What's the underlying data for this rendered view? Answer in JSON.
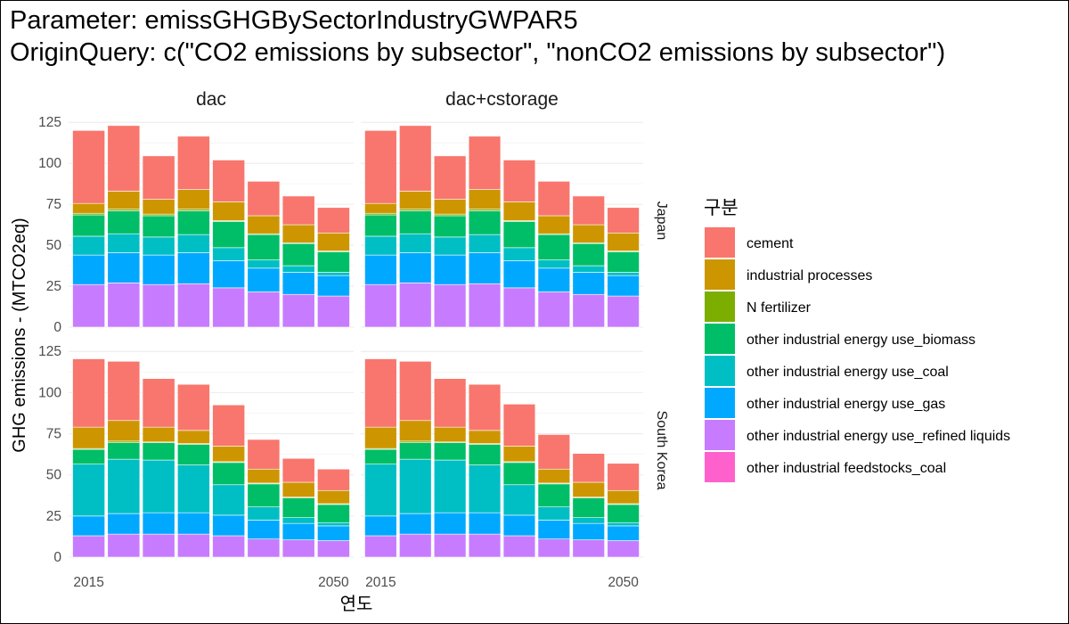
{
  "title": {
    "line1": "Parameter: emissGHGBySectorIndustryGWPAR5",
    "line2": "OriginQuery: c(\"CO2 emissions by subsector\", \"nonCO2 emissions by subsector\")"
  },
  "chart_data": {
    "type": "bar",
    "stacked": true,
    "xlabel": "연도",
    "ylabel": "GHG emissions - (MTCO2eq)",
    "x_ticks": [
      "2015",
      "2050"
    ],
    "x": [
      2015,
      2020,
      2025,
      2030,
      2035,
      2040,
      2045,
      2050
    ],
    "ylim": [
      0,
      130
    ],
    "y_ticks": [
      0,
      25,
      50,
      75,
      100,
      125
    ],
    "grid": true,
    "facet_columns": [
      "dac",
      "dac+cstorage"
    ],
    "facet_rows": [
      "Japan",
      "South Korea"
    ],
    "legend": {
      "title": "구분",
      "position": "right",
      "entries": [
        {
          "name": "cement",
          "color": "#F8766D"
        },
        {
          "name": "industrial processes",
          "color": "#CD9600"
        },
        {
          "name": "N fertilizer",
          "color": "#7CAE00"
        },
        {
          "name": "other industrial energy use_biomass",
          "color": "#00BE67"
        },
        {
          "name": "other industrial energy use_coal",
          "color": "#00BFC4"
        },
        {
          "name": "other industrial energy use_gas",
          "color": "#00A9FF"
        },
        {
          "name": "other industrial energy use_refined liquids",
          "color": "#C77CFF"
        },
        {
          "name": "other industrial feedstocks_coal",
          "color": "#FF61CC"
        }
      ]
    },
    "panels": [
      {
        "column": "dac",
        "row": "Japan",
        "series": [
          {
            "name": "other industrial energy use_refined liquids",
            "values": [
              26,
              27,
              26,
              26.5,
              24,
              21.5,
              20,
              19
            ]
          },
          {
            "name": "other industrial energy use_gas",
            "values": [
              18,
              18.5,
              18,
              19,
              16.5,
              14.5,
              13.5,
              12.5
            ]
          },
          {
            "name": "other industrial energy use_coal",
            "values": [
              11.5,
              11.5,
              11,
              11,
              8,
              5,
              4,
              2
            ]
          },
          {
            "name": "other industrial energy use_biomass",
            "values": [
              13,
              14,
              13,
              14.5,
              16,
              15.5,
              13.5,
              12.5
            ]
          },
          {
            "name": "N fertilizer",
            "values": [
              1,
              1,
              1,
              1,
              0.5,
              0.5,
              0.5,
              0.5
            ]
          },
          {
            "name": "industrial processes",
            "values": [
              6,
              11,
              9,
              12,
              11.5,
              11,
              11,
              11
            ]
          },
          {
            "name": "cement",
            "values": [
              44.5,
              40,
              26.5,
              32.5,
              25.5,
              21,
              17.5,
              15.5
            ]
          }
        ]
      },
      {
        "column": "dac+cstorage",
        "row": "Japan",
        "series": [
          {
            "name": "other industrial energy use_refined liquids",
            "values": [
              26,
              27,
              26,
              26.5,
              24,
              21.5,
              20,
              19
            ]
          },
          {
            "name": "other industrial energy use_gas",
            "values": [
              18,
              18.5,
              18,
              19,
              16.5,
              14.5,
              13.5,
              12.5
            ]
          },
          {
            "name": "other industrial energy use_coal",
            "values": [
              11.5,
              11.5,
              11,
              11,
              8,
              5,
              4,
              2
            ]
          },
          {
            "name": "other industrial energy use_biomass",
            "values": [
              13,
              14,
              13,
              14.5,
              16,
              15.5,
              13.5,
              12.5
            ]
          },
          {
            "name": "N fertilizer",
            "values": [
              1,
              1,
              1,
              1,
              0.5,
              0.5,
              0.5,
              0.5
            ]
          },
          {
            "name": "industrial processes",
            "values": [
              6,
              11,
              9,
              12,
              11.5,
              11,
              11,
              11
            ]
          },
          {
            "name": "cement",
            "values": [
              44.5,
              40,
              26.5,
              32.5,
              25.5,
              21,
              17.5,
              15.5
            ]
          }
        ]
      },
      {
        "column": "dac",
        "row": "South Korea",
        "series": [
          {
            "name": "other industrial energy use_refined liquids",
            "values": [
              13,
              14,
              14,
              14,
              13,
              11,
              10.5,
              10
            ]
          },
          {
            "name": "other industrial energy use_gas",
            "values": [
              12,
              12.5,
              13,
              13,
              12.5,
              11.5,
              10,
              9
            ]
          },
          {
            "name": "other industrial energy use_coal",
            "values": [
              31.5,
              33,
              32,
              29,
              18.5,
              8,
              3.5,
              2
            ]
          },
          {
            "name": "other industrial energy use_biomass",
            "values": [
              9,
              10,
              10.5,
              12.5,
              13.5,
              14,
              12,
              11
            ]
          },
          {
            "name": "N fertilizer",
            "values": [
              0.5,
              1,
              0.5,
              0.5,
              0.5,
              0.5,
              0.5,
              0.5
            ]
          },
          {
            "name": "industrial processes",
            "values": [
              13,
              12.5,
              9,
              8,
              9.5,
              8.5,
              9,
              8
            ]
          },
          {
            "name": "cement",
            "values": [
              41.5,
              36,
              29.5,
              28,
              25,
              18,
              14.5,
              13
            ]
          }
        ]
      },
      {
        "column": "dac+cstorage",
        "row": "South Korea",
        "series": [
          {
            "name": "other industrial energy use_refined liquids",
            "values": [
              13,
              14,
              14,
              14,
              13,
              11,
              10.5,
              10
            ]
          },
          {
            "name": "other industrial energy use_gas",
            "values": [
              12,
              12.5,
              13,
              13,
              12.5,
              11.5,
              10,
              9
            ]
          },
          {
            "name": "other industrial energy use_coal",
            "values": [
              31.5,
              33,
              32,
              29,
              18.5,
              8,
              3.5,
              2
            ]
          },
          {
            "name": "other industrial energy use_biomass",
            "values": [
              9,
              10,
              10.5,
              12.5,
              13.5,
              14,
              12,
              11
            ]
          },
          {
            "name": "N fertilizer",
            "values": [
              0.5,
              1,
              0.5,
              0.5,
              0.5,
              0.5,
              0.5,
              0.5
            ]
          },
          {
            "name": "industrial processes",
            "values": [
              13,
              12.5,
              9,
              8,
              9.5,
              8.5,
              9,
              8
            ]
          },
          {
            "name": "cement",
            "values": [
              41.5,
              36,
              29.5,
              28,
              25.5,
              21,
              17.5,
              16.5
            ]
          }
        ]
      }
    ]
  }
}
